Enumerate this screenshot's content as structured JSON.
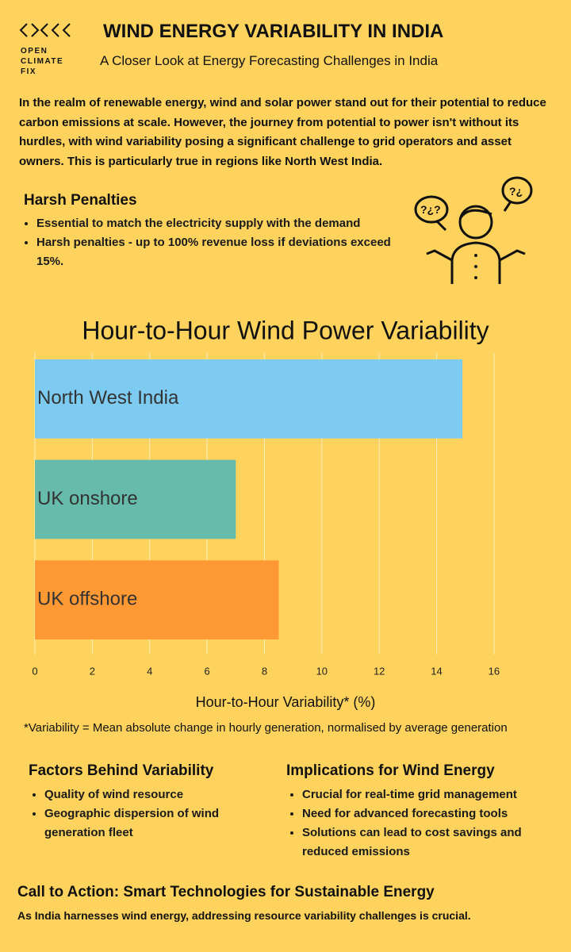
{
  "logo": [
    "OPEN",
    "CLIMATE",
    "FIX"
  ],
  "header": {
    "title": "WIND ENERGY VARIABILITY IN INDIA",
    "subtitle": "A Closer Look at Energy Forecasting Challenges in India"
  },
  "intro": "In the realm of renewable energy, wind and solar power stand out for their potential to reduce carbon emissions at scale. However, the journey from potential to power isn't without its hurdles, with wind variability posing a significant challenge to grid operators and asset owners. This is particularly true in regions like North West India.",
  "penalties": {
    "heading": "Harsh Penalties",
    "items": [
      "Essential to match the electricity supply with the demand",
      "Harsh penalties - up to 100% revenue loss if deviations exceed 15%."
    ]
  },
  "chart_data": {
    "type": "bar",
    "orientation": "horizontal",
    "title": "Hour-to-Hour Wind Power Variability",
    "categories": [
      "North West India",
      "UK onshore",
      "UK offshore"
    ],
    "values": [
      14.9,
      7.0,
      8.5
    ],
    "colors": [
      "#7ecbf2",
      "#66bbaa",
      "#ff9933"
    ],
    "xlabel": "Hour-to-Hour Variability* (%)",
    "xlim": [
      0,
      16.5
    ],
    "xticks": [
      0,
      2,
      4,
      6,
      8,
      10,
      12,
      14,
      16
    ],
    "grid": true
  },
  "footnote": "*Variability = Mean absolute change in hourly generation, normalised by average generation",
  "factors": {
    "heading": "Factors Behind Variability",
    "items": [
      "Quality of wind resource",
      "Geographic dispersion of wind generation fleet"
    ]
  },
  "implications": {
    "heading": "Implications for Wind Energy",
    "items": [
      "Crucial for real-time grid management",
      "Need for advanced forecasting tools",
      "Solutions can lead to cost savings and reduced emissions"
    ]
  },
  "cta": {
    "heading": "Call to Action: Smart Technologies for Sustainable Energy",
    "text": "As India harnesses wind energy, addressing resource variability challenges is crucial."
  }
}
